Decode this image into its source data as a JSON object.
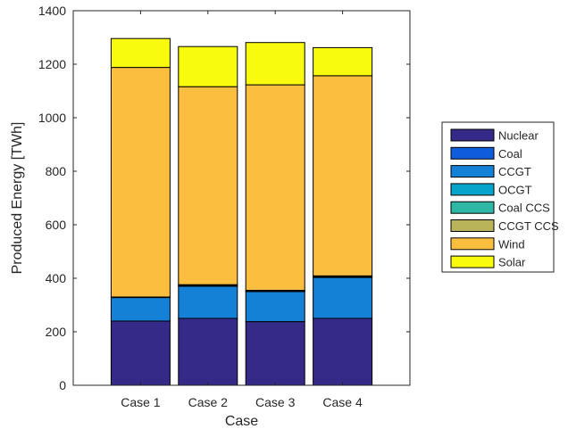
{
  "chart_data": {
    "type": "bar",
    "stacked": true,
    "title": "",
    "xlabel": "Case",
    "ylabel": "Produced Energy [TWh]",
    "categories": [
      "Case 1",
      "Case 2",
      "Case 3",
      "Case 4"
    ],
    "ylim": [
      0,
      1400
    ],
    "yticks": [
      "0",
      "200",
      "400",
      "600",
      "800",
      "1000",
      "1200",
      "1400"
    ],
    "grid": false,
    "legend_position": "right",
    "series": [
      {
        "name": "Nuclear",
        "color": "#352a87",
        "values": [
          240,
          250,
          238,
          250
        ]
      },
      {
        "name": "Coal",
        "color": "#0f5cdd",
        "values": [
          0,
          0,
          0,
          0
        ]
      },
      {
        "name": "CCGT",
        "color": "#1481d6",
        "values": [
          88,
          120,
          112,
          153
        ]
      },
      {
        "name": "OCGT",
        "color": "#06a4ca",
        "values": [
          2,
          3,
          3,
          3
        ]
      },
      {
        "name": "Coal CCS",
        "color": "#2eb7a4",
        "values": [
          0,
          3,
          2,
          3
        ]
      },
      {
        "name": "CCGT CCS",
        "color": "#b9b35a",
        "values": [
          0,
          0,
          0,
          0
        ]
      },
      {
        "name": "Wind",
        "color": "#fbbe3f",
        "values": [
          858,
          740,
          768,
          748
        ]
      },
      {
        "name": "Solar",
        "color": "#f9fb0e",
        "values": [
          108,
          150,
          158,
          105
        ]
      }
    ]
  }
}
